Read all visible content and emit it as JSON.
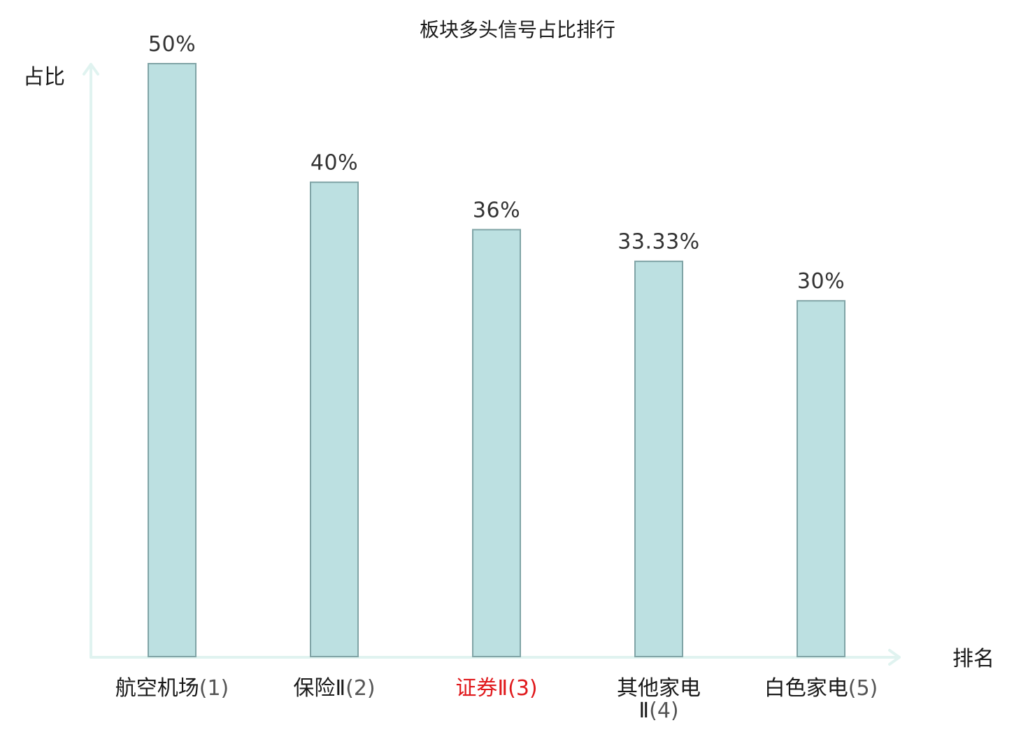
{
  "chart_data": {
    "type": "bar",
    "title": "板块多头信号占比排行",
    "xlabel": "排名",
    "ylabel": "占比",
    "categories": [
      {
        "name": "航空机场",
        "rank_label": "(1)",
        "highlight": false
      },
      {
        "name": "保险Ⅱ",
        "rank_label": "(2)",
        "highlight": false
      },
      {
        "name": "证券Ⅱ",
        "rank_label": "(3)",
        "highlight": true
      },
      {
        "name": "其他家电Ⅱ",
        "rank_label": "(4)",
        "highlight": false
      },
      {
        "name": "白色家电",
        "rank_label": "(5)",
        "highlight": false
      }
    ],
    "values": [
      50,
      40,
      36,
      33.33,
      30
    ],
    "value_labels": [
      "50%",
      "40%",
      "36%",
      "33.33%",
      "30%"
    ],
    "ylim": [
      0,
      50
    ],
    "grid": false,
    "colors": {
      "bar_fill": "#bce0e1",
      "bar_stroke": "#80a4a6",
      "axis": "#e0f3f0",
      "highlight_text": "#e0191c",
      "text": "#1a1a1a",
      "rank_text": "#555555",
      "value_text": "#333333"
    }
  }
}
